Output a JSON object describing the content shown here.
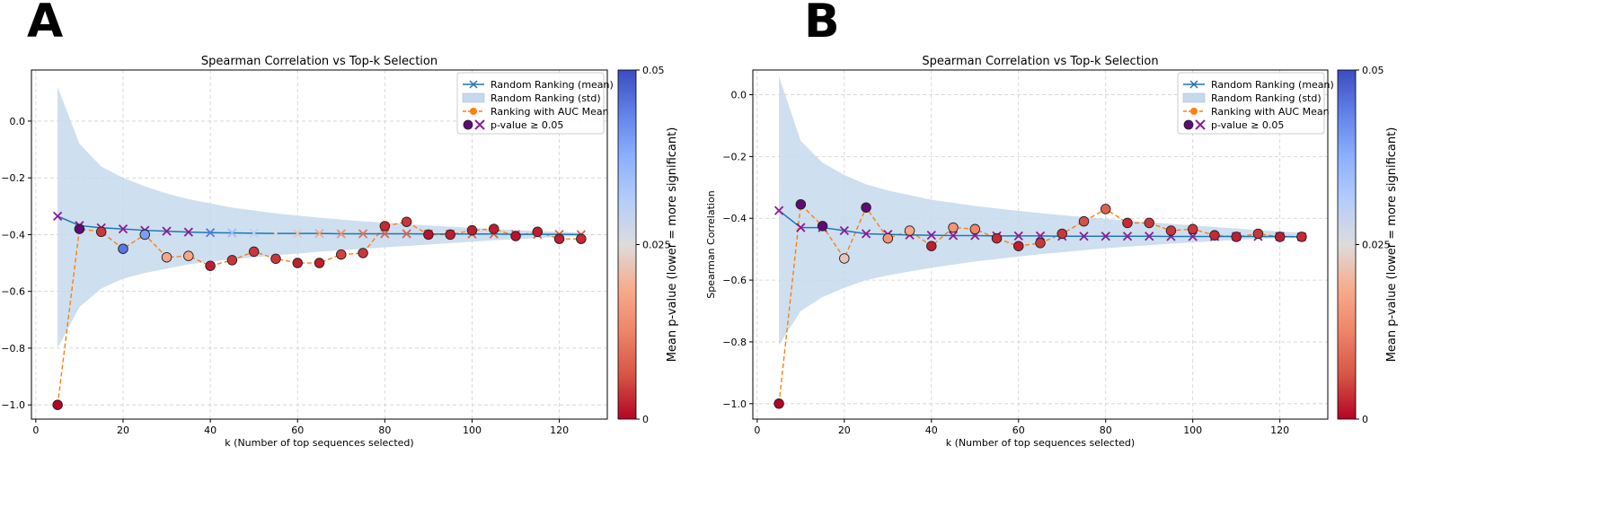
{
  "chart_data": [
    {
      "panel_label": "A",
      "type": "line",
      "title": "Spearman Correlation vs Top-k Selection",
      "xlabel": "k (Number of top sequences selected)",
      "ylabel": "",
      "xlim": [
        -1,
        131
      ],
      "ylim": [
        -1.05,
        0.18
      ],
      "xticks": [
        0,
        20,
        40,
        60,
        80,
        100,
        120
      ],
      "yticks": [
        0.0,
        -0.2,
        -0.4,
        -0.6,
        -0.8,
        -1.0
      ],
      "ytick_labels": [
        "0.0",
        "−0.2",
        "−0.4",
        "−0.6",
        "−0.8",
        "−1.0"
      ],
      "grid": true,
      "legend_position": "top-right",
      "legend": [
        "Random Ranking (mean)",
        "Random Ranking (std)",
        "Ranking with AUC Mean",
        "p-value ≥ 0.05"
      ],
      "colorbar": {
        "label": "Mean p-value (lower = more significant)",
        "range": [
          0,
          0.05
        ],
        "ticks": [
          "0",
          "0.025",
          "0.05"
        ]
      },
      "x": [
        5,
        10,
        15,
        20,
        25,
        30,
        35,
        40,
        45,
        50,
        55,
        60,
        65,
        70,
        75,
        80,
        85,
        90,
        95,
        100,
        105,
        110,
        115,
        120,
        125
      ],
      "series": [
        {
          "name": "Random Ranking (mean)",
          "values": [
            -0.335,
            -0.368,
            -0.376,
            -0.38,
            -0.385,
            -0.388,
            -0.391,
            -0.393,
            -0.394,
            -0.395,
            -0.396,
            -0.396,
            -0.396,
            -0.397,
            -0.397,
            -0.397,
            -0.397,
            -0.398,
            -0.398,
            -0.398,
            -0.398,
            -0.399,
            -0.399,
            -0.399,
            -0.4
          ]
        },
        {
          "name": "Random Ranking (std) upper",
          "values": [
            0.12,
            -0.08,
            -0.16,
            -0.2,
            -0.23,
            -0.255,
            -0.275,
            -0.29,
            -0.305,
            -0.315,
            -0.325,
            -0.333,
            -0.34,
            -0.347,
            -0.353,
            -0.358,
            -0.363,
            -0.368,
            -0.372,
            -0.376,
            -0.38,
            -0.384,
            -0.387,
            -0.39,
            -0.393
          ]
        },
        {
          "name": "Random Ranking (std) lower",
          "values": [
            -0.8,
            -0.655,
            -0.59,
            -0.555,
            -0.535,
            -0.52,
            -0.505,
            -0.495,
            -0.487,
            -0.48,
            -0.473,
            -0.467,
            -0.46,
            -0.455,
            -0.45,
            -0.445,
            -0.44,
            -0.435,
            -0.43,
            -0.425,
            -0.42,
            -0.416,
            -0.412,
            -0.408,
            -0.405
          ]
        },
        {
          "name": "Ranking with AUC Mean",
          "values": [
            -1.0,
            -0.38,
            -0.39,
            -0.45,
            -0.4,
            -0.48,
            -0.475,
            -0.51,
            -0.49,
            -0.46,
            -0.485,
            -0.5,
            -0.5,
            -0.47,
            -0.465,
            -0.37,
            -0.355,
            -0.4,
            -0.4,
            -0.385,
            -0.38,
            -0.405,
            -0.39,
            -0.415,
            -0.415
          ]
        },
        {
          "name": "AUC p-values",
          "values": [
            0.0,
            0.07,
            0.004,
            0.045,
            0.04,
            0.018,
            0.018,
            0.002,
            0.004,
            0.004,
            0.004,
            0.002,
            0.002,
            0.005,
            0.004,
            0.003,
            0.004,
            0.001,
            0.002,
            0.002,
            0.002,
            0.001,
            0.002,
            0.002,
            0.003
          ]
        },
        {
          "name": "Random p-values",
          "values": [
            0.06,
            0.06,
            0.06,
            0.06,
            0.06,
            0.06,
            0.06,
            0.045,
            0.035,
            0.03,
            0.025,
            0.022,
            0.018,
            0.014,
            0.01,
            0.008,
            0.008,
            0.008,
            0.008,
            0.008,
            0.008,
            0.008,
            0.008,
            0.008,
            0.008
          ]
        }
      ]
    },
    {
      "panel_label": "B",
      "type": "line",
      "title": "Spearman Correlation vs Top-k Selection",
      "xlabel": "k (Number of top sequences selected)",
      "ylabel": "Spearman Correlation",
      "xlim": [
        -1,
        131
      ],
      "ylim": [
        -1.05,
        0.08
      ],
      "xticks": [
        0,
        20,
        40,
        60,
        80,
        100,
        120
      ],
      "yticks": [
        0.0,
        -0.2,
        -0.4,
        -0.6,
        -0.8,
        -1.0
      ],
      "ytick_labels": [
        "0.0",
        "−0.2",
        "−0.4",
        "−0.6",
        "−0.8",
        "−1.0"
      ],
      "grid": true,
      "legend_position": "top-right",
      "legend": [
        "Random Ranking (mean)",
        "Random Ranking (std)",
        "Ranking with AUC Mean",
        "p-value ≥ 0.05"
      ],
      "colorbar": {
        "label": "Mean p-value (lower = more significant)",
        "range": [
          0,
          0.05
        ],
        "ticks": [
          "0",
          "0.025",
          "0.05"
        ]
      },
      "x": [
        5,
        10,
        15,
        20,
        25,
        30,
        35,
        40,
        45,
        50,
        55,
        60,
        65,
        70,
        75,
        80,
        85,
        90,
        95,
        100,
        105,
        110,
        115,
        120,
        125
      ],
      "series": [
        {
          "name": "Random Ranking (mean)",
          "values": [
            -0.375,
            -0.43,
            -0.43,
            -0.44,
            -0.45,
            -0.452,
            -0.454,
            -0.455,
            -0.456,
            -0.456,
            -0.457,
            -0.457,
            -0.457,
            -0.458,
            -0.458,
            -0.458,
            -0.458,
            -0.458,
            -0.459,
            -0.459,
            -0.459,
            -0.459,
            -0.459,
            -0.459,
            -0.46
          ]
        },
        {
          "name": "Random Ranking (std) upper",
          "values": [
            0.06,
            -0.15,
            -0.22,
            -0.26,
            -0.29,
            -0.31,
            -0.325,
            -0.34,
            -0.35,
            -0.36,
            -0.368,
            -0.376,
            -0.383,
            -0.39,
            -0.396,
            -0.402,
            -0.408,
            -0.413,
            -0.418,
            -0.423,
            -0.428,
            -0.433,
            -0.438,
            -0.443,
            -0.447
          ]
        },
        {
          "name": "Random Ranking (std) lower",
          "values": [
            -0.81,
            -0.7,
            -0.655,
            -0.625,
            -0.6,
            -0.585,
            -0.572,
            -0.56,
            -0.55,
            -0.54,
            -0.532,
            -0.524,
            -0.516,
            -0.51,
            -0.503,
            -0.497,
            -0.492,
            -0.487,
            -0.482,
            -0.478,
            -0.474,
            -0.47,
            -0.467,
            -0.464,
            -0.462
          ]
        },
        {
          "name": "Ranking with AUC Mean",
          "values": [
            -1.0,
            -0.355,
            -0.425,
            -0.53,
            -0.365,
            -0.465,
            -0.44,
            -0.49,
            -0.43,
            -0.435,
            -0.465,
            -0.49,
            -0.48,
            -0.45,
            -0.41,
            -0.37,
            -0.415,
            -0.415,
            -0.44,
            -0.435,
            -0.455,
            -0.46,
            -0.45,
            -0.46,
            -0.46
          ]
        },
        {
          "name": "AUC p-values",
          "values": [
            0.0,
            0.06,
            0.06,
            0.022,
            0.06,
            0.015,
            0.018,
            0.002,
            0.015,
            0.013,
            0.003,
            0.002,
            0.004,
            0.004,
            0.006,
            0.008,
            0.003,
            0.004,
            0.004,
            0.004,
            0.003,
            0.002,
            0.004,
            0.002,
            0.003
          ]
        },
        {
          "name": "Random p-values",
          "values": [
            0.06,
            0.06,
            0.06,
            0.06,
            0.06,
            0.06,
            0.06,
            0.06,
            0.06,
            0.06,
            0.06,
            0.06,
            0.06,
            0.06,
            0.06,
            0.06,
            0.06,
            0.06,
            0.06,
            0.06,
            0.06,
            0.06,
            0.06,
            0.06,
            0.06
          ]
        }
      ]
    }
  ],
  "colors": {
    "random_line": "#1f77b4",
    "std_band": "#c6d9ec",
    "auc_line": "#ff7f0e",
    "nonsig_marker": "#8e1a96",
    "nonsig_fill": "#5e0a78",
    "grid": "#d0d0d0"
  }
}
